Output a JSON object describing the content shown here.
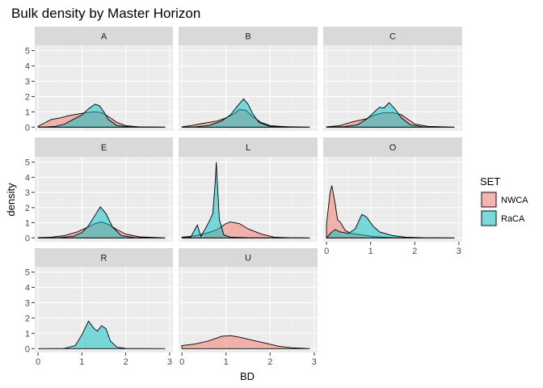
{
  "chart_data": {
    "type": "area",
    "title": "Bulk density by Master Horizon",
    "xlabel": "BD",
    "ylabel": "density",
    "xlim": [
      0,
      3
    ],
    "ylim": [
      0,
      5
    ],
    "x_ticks": [
      "0",
      "1",
      "2",
      "3"
    ],
    "y_ticks": [
      "0",
      "1",
      "2",
      "3",
      "4",
      "5"
    ],
    "grid": true,
    "legend": {
      "title": "SET",
      "position": "right",
      "entries": [
        {
          "name": "NWCA",
          "color": "#F8766D"
        },
        {
          "name": "RaCA",
          "color": "#00BFC4"
        }
      ]
    },
    "panels": [
      {
        "label": "A",
        "series": [
          {
            "name": "NWCA",
            "points": [
              [
                0,
                0.05
              ],
              [
                0.1,
                0.2
              ],
              [
                0.3,
                0.5
              ],
              [
                0.5,
                0.6
              ],
              [
                0.7,
                0.75
              ],
              [
                0.9,
                0.85
              ],
              [
                1.1,
                0.95
              ],
              [
                1.3,
                1.0
              ],
              [
                1.45,
                0.95
              ],
              [
                1.6,
                0.7
              ],
              [
                1.8,
                0.3
              ],
              [
                2.0,
                0.1
              ],
              [
                2.3,
                0.02
              ],
              [
                2.9,
                0
              ]
            ]
          },
          {
            "name": "RaCA",
            "points": [
              [
                0,
                0
              ],
              [
                0.2,
                0.02
              ],
              [
                0.4,
                0.05
              ],
              [
                0.6,
                0.2
              ],
              [
                0.8,
                0.5
              ],
              [
                1.0,
                0.8
              ],
              [
                1.15,
                1.2
              ],
              [
                1.3,
                1.5
              ],
              [
                1.4,
                1.4
              ],
              [
                1.5,
                1.0
              ],
              [
                1.6,
                0.5
              ],
              [
                1.8,
                0.1
              ],
              [
                2.1,
                0.02
              ],
              [
                2.9,
                0
              ]
            ]
          }
        ]
      },
      {
        "label": "B",
        "series": [
          {
            "name": "NWCA",
            "points": [
              [
                0,
                0.02
              ],
              [
                0.2,
                0.1
              ],
              [
                0.5,
                0.25
              ],
              [
                0.8,
                0.4
              ],
              [
                1.0,
                0.6
              ],
              [
                1.2,
                0.9
              ],
              [
                1.3,
                1.15
              ],
              [
                1.45,
                1.1
              ],
              [
                1.6,
                0.7
              ],
              [
                1.8,
                0.3
              ],
              [
                2.0,
                0.1
              ],
              [
                2.4,
                0.02
              ],
              [
                2.9,
                0
              ]
            ]
          },
          {
            "name": "RaCA",
            "points": [
              [
                0,
                0
              ],
              [
                0.3,
                0.02
              ],
              [
                0.6,
                0.1
              ],
              [
                0.9,
                0.4
              ],
              [
                1.1,
                0.8
              ],
              [
                1.25,
                1.35
              ],
              [
                1.4,
                1.85
              ],
              [
                1.5,
                1.5
              ],
              [
                1.6,
                0.9
              ],
              [
                1.75,
                0.3
              ],
              [
                2.0,
                0.05
              ],
              [
                2.9,
                0
              ]
            ]
          }
        ]
      },
      {
        "label": "C",
        "series": [
          {
            "name": "NWCA",
            "points": [
              [
                0,
                0.02
              ],
              [
                0.3,
                0.1
              ],
              [
                0.6,
                0.35
              ],
              [
                0.9,
                0.55
              ],
              [
                1.1,
                0.8
              ],
              [
                1.3,
                0.95
              ],
              [
                1.5,
                0.95
              ],
              [
                1.7,
                0.8
              ],
              [
                1.85,
                0.5
              ],
              [
                2.0,
                0.2
              ],
              [
                2.3,
                0.05
              ],
              [
                2.9,
                0
              ]
            ]
          },
          {
            "name": "RaCA",
            "points": [
              [
                0,
                0
              ],
              [
                0.4,
                0.03
              ],
              [
                0.7,
                0.15
              ],
              [
                0.9,
                0.5
              ],
              [
                1.05,
                0.9
              ],
              [
                1.2,
                1.3
              ],
              [
                1.3,
                1.25
              ],
              [
                1.42,
                1.6
              ],
              [
                1.55,
                1.2
              ],
              [
                1.7,
                0.6
              ],
              [
                1.9,
                0.15
              ],
              [
                2.2,
                0.02
              ],
              [
                2.9,
                0
              ]
            ]
          }
        ]
      },
      {
        "label": "E",
        "series": [
          {
            "name": "NWCA",
            "points": [
              [
                0,
                0.02
              ],
              [
                0.3,
                0.05
              ],
              [
                0.6,
                0.15
              ],
              [
                0.9,
                0.4
              ],
              [
                1.1,
                0.65
              ],
              [
                1.3,
                0.95
              ],
              [
                1.45,
                1.05
              ],
              [
                1.6,
                0.9
              ],
              [
                1.8,
                0.55
              ],
              [
                2.0,
                0.25
              ],
              [
                2.3,
                0.07
              ],
              [
                2.9,
                0
              ]
            ]
          },
          {
            "name": "RaCA",
            "points": [
              [
                0,
                0
              ],
              [
                0.5,
                0.02
              ],
              [
                0.8,
                0.1
              ],
              [
                1.0,
                0.35
              ],
              [
                1.15,
                0.8
              ],
              [
                1.3,
                1.5
              ],
              [
                1.42,
                2.05
              ],
              [
                1.55,
                1.6
              ],
              [
                1.7,
                0.7
              ],
              [
                1.9,
                0.15
              ],
              [
                2.2,
                0.02
              ],
              [
                2.9,
                0
              ]
            ]
          }
        ]
      },
      {
        "label": "L",
        "series": [
          {
            "name": "NWCA",
            "points": [
              [
                0,
                0.05
              ],
              [
                0.2,
                0.1
              ],
              [
                0.4,
                0.2
              ],
              [
                0.6,
                0.35
              ],
              [
                0.8,
                0.55
              ],
              [
                1.0,
                0.95
              ],
              [
                1.1,
                1.05
              ],
              [
                1.3,
                0.95
              ],
              [
                1.5,
                0.6
              ],
              [
                1.8,
                0.25
              ],
              [
                2.1,
                0.05
              ],
              [
                2.4,
                0.01
              ],
              [
                2.9,
                0
              ]
            ]
          },
          {
            "name": "RaCA",
            "points": [
              [
                0,
                0
              ],
              [
                0.2,
                0.05
              ],
              [
                0.35,
                0.85
              ],
              [
                0.43,
                0.1
              ],
              [
                0.52,
                0.55
              ],
              [
                0.62,
                1.1
              ],
              [
                0.7,
                1.6
              ],
              [
                0.75,
                3.5
              ],
              [
                0.78,
                5.0
              ],
              [
                0.8,
                3.8
              ],
              [
                0.85,
                1.2
              ],
              [
                0.95,
                0.2
              ],
              [
                1.1,
                0.05
              ],
              [
                1.5,
                0.01
              ],
              [
                2.9,
                0
              ]
            ]
          }
        ]
      },
      {
        "label": "O",
        "series": [
          {
            "name": "NWCA",
            "points": [
              [
                0,
                0.9
              ],
              [
                0.08,
                3.0
              ],
              [
                0.12,
                3.45
              ],
              [
                0.18,
                2.5
              ],
              [
                0.25,
                1.2
              ],
              [
                0.32,
                1.0
              ],
              [
                0.42,
                0.5
              ],
              [
                0.55,
                0.3
              ],
              [
                0.8,
                0.2
              ],
              [
                1.1,
                0.08
              ],
              [
                1.5,
                0.02
              ],
              [
                2.0,
                0
              ],
              [
                2.9,
                0
              ]
            ]
          },
          {
            "name": "RaCA",
            "points": [
              [
                0,
                0
              ],
              [
                0.1,
                0.35
              ],
              [
                0.2,
                0.55
              ],
              [
                0.3,
                0.4
              ],
              [
                0.5,
                0.3
              ],
              [
                0.65,
                0.6
              ],
              [
                0.8,
                1.55
              ],
              [
                0.9,
                1.4
              ],
              [
                1.05,
                0.8
              ],
              [
                1.2,
                0.4
              ],
              [
                1.5,
                0.15
              ],
              [
                1.8,
                0.05
              ],
              [
                2.2,
                0.01
              ],
              [
                2.9,
                0
              ]
            ]
          }
        ]
      },
      {
        "label": "R",
        "series": [
          {
            "name": "RaCA",
            "points": [
              [
                0,
                0
              ],
              [
                0.6,
                0.01
              ],
              [
                0.85,
                0.2
              ],
              [
                1.0,
                0.9
              ],
              [
                1.15,
                1.8
              ],
              [
                1.28,
                1.3
              ],
              [
                1.35,
                1.15
              ],
              [
                1.45,
                1.5
              ],
              [
                1.55,
                1.3
              ],
              [
                1.65,
                0.5
              ],
              [
                1.8,
                0.1
              ],
              [
                2.0,
                0.01
              ],
              [
                2.9,
                0
              ]
            ]
          }
        ]
      },
      {
        "label": "U",
        "series": [
          {
            "name": "NWCA",
            "points": [
              [
                0,
                0.2
              ],
              [
                0.3,
                0.3
              ],
              [
                0.6,
                0.5
              ],
              [
                0.9,
                0.8
              ],
              [
                1.1,
                0.85
              ],
              [
                1.3,
                0.75
              ],
              [
                1.6,
                0.55
              ],
              [
                1.9,
                0.35
              ],
              [
                2.2,
                0.15
              ],
              [
                2.5,
                0.05
              ],
              [
                2.8,
                0.01
              ],
              [
                2.9,
                0
              ]
            ]
          }
        ]
      }
    ]
  }
}
